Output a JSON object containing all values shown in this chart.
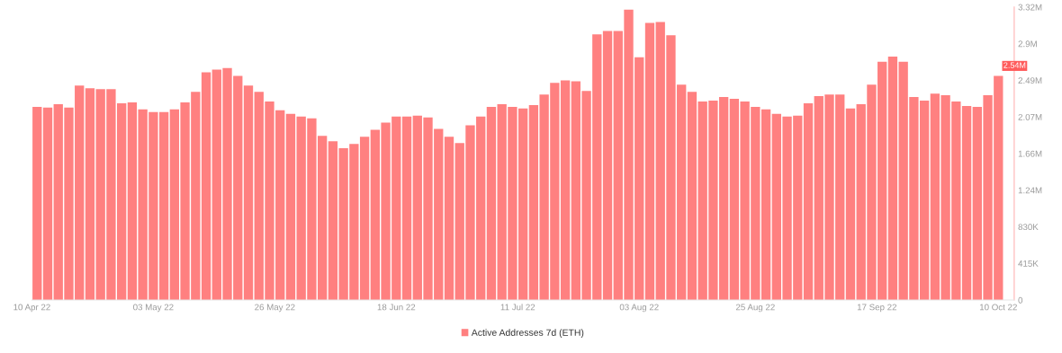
{
  "chart_data": {
    "type": "bar",
    "x": [
      "2022-04-11",
      "2022-04-13",
      "2022-04-15",
      "2022-04-17",
      "2022-04-19",
      "2022-04-21",
      "2022-04-23",
      "2022-04-25",
      "2022-04-27",
      "2022-04-29",
      "2022-05-01",
      "2022-05-03",
      "2022-05-05",
      "2022-05-07",
      "2022-05-09",
      "2022-05-11",
      "2022-05-13",
      "2022-05-15",
      "2022-05-17",
      "2022-05-19",
      "2022-05-21",
      "2022-05-23",
      "2022-05-25",
      "2022-05-27",
      "2022-05-29",
      "2022-05-31",
      "2022-06-02",
      "2022-06-04",
      "2022-06-06",
      "2022-06-08",
      "2022-06-10",
      "2022-06-12",
      "2022-06-14",
      "2022-06-16",
      "2022-06-18",
      "2022-06-20",
      "2022-06-22",
      "2022-06-24",
      "2022-06-26",
      "2022-06-28",
      "2022-06-30",
      "2022-07-02",
      "2022-07-04",
      "2022-07-06",
      "2022-07-08",
      "2022-07-10",
      "2022-07-12",
      "2022-07-14",
      "2022-07-16",
      "2022-07-18",
      "2022-07-20",
      "2022-07-22",
      "2022-07-24",
      "2022-07-26",
      "2022-07-28",
      "2022-07-30",
      "2022-08-01",
      "2022-08-03",
      "2022-08-05",
      "2022-08-07",
      "2022-08-09",
      "2022-08-11",
      "2022-08-13",
      "2022-08-15",
      "2022-08-17",
      "2022-08-19",
      "2022-08-21",
      "2022-08-23",
      "2022-08-25",
      "2022-08-27",
      "2022-08-29",
      "2022-08-31",
      "2022-09-02",
      "2022-09-04",
      "2022-09-06",
      "2022-09-08",
      "2022-09-10",
      "2022-09-12",
      "2022-09-14",
      "2022-09-16",
      "2022-09-18",
      "2022-09-20",
      "2022-09-22",
      "2022-09-24",
      "2022-09-26",
      "2022-09-28",
      "2022-09-30",
      "2022-10-02",
      "2022-10-04",
      "2022-10-06",
      "2022-10-08",
      "2022-10-10"
    ],
    "series": [
      {
        "name": "Active Addresses 7d (ETH)",
        "color": "#ff8080",
        "values": [
          2190000,
          2180000,
          2220000,
          2180000,
          2430000,
          2400000,
          2390000,
          2390000,
          2230000,
          2240000,
          2160000,
          2130000,
          2130000,
          2160000,
          2240000,
          2360000,
          2580000,
          2610000,
          2630000,
          2540000,
          2430000,
          2360000,
          2250000,
          2150000,
          2110000,
          2080000,
          2060000,
          1860000,
          1800000,
          1720000,
          1770000,
          1850000,
          1930000,
          2010000,
          2080000,
          2080000,
          2090000,
          2070000,
          1940000,
          1850000,
          1780000,
          1980000,
          2080000,
          2190000,
          2220000,
          2190000,
          2170000,
          2210000,
          2330000,
          2460000,
          2490000,
          2480000,
          2370000,
          3010000,
          3050000,
          3050000,
          3290000,
          2750000,
          3140000,
          3150000,
          3000000,
          2440000,
          2360000,
          2250000,
          2260000,
          2300000,
          2280000,
          2250000,
          2190000,
          2160000,
          2110000,
          2080000,
          2090000,
          2230000,
          2310000,
          2330000,
          2330000,
          2170000,
          2220000,
          2440000,
          2700000,
          2760000,
          2700000,
          2300000,
          2260000,
          2340000,
          2320000,
          2250000,
          2200000,
          2190000,
          2320000,
          2540000
        ]
      }
    ],
    "xlim": [
      "2022-04-10",
      "2022-10-13"
    ],
    "xticks": [
      {
        "value": "2022-04-10",
        "label": "10 Apr 22"
      },
      {
        "value": "2022-05-03",
        "label": "03 May 22"
      },
      {
        "value": "2022-05-26",
        "label": "26 May 22"
      },
      {
        "value": "2022-06-18",
        "label": "18 Jun 22"
      },
      {
        "value": "2022-07-11",
        "label": "11 Jul 22"
      },
      {
        "value": "2022-08-03",
        "label": "03 Aug 22"
      },
      {
        "value": "2022-08-25",
        "label": "25 Aug 22"
      },
      {
        "value": "2022-09-17",
        "label": "17 Sep 22"
      },
      {
        "value": "2022-10-10",
        "label": "10 Oct 22"
      }
    ],
    "ylim": [
      0,
      3320000
    ],
    "yticks": [
      0,
      {
        "value": 415000,
        "label": "415K"
      },
      {
        "value": 830000,
        "label": "830K"
      },
      {
        "value": 1245000,
        "label": "1.24M"
      },
      {
        "value": 1660000,
        "label": "1.66M"
      },
      {
        "value": 2075000,
        "label": "2.07M"
      },
      {
        "value": 2490000,
        "label": "2.49M"
      },
      {
        "value": 2905000,
        "label": "2.9M"
      },
      {
        "value": 3320000,
        "label": "3.32M"
      }
    ],
    "annotations": [
      {
        "text": "2.54M",
        "x": "2022-10-10",
        "y": 2540000
      }
    ],
    "grid": false,
    "legend": "bottom"
  }
}
